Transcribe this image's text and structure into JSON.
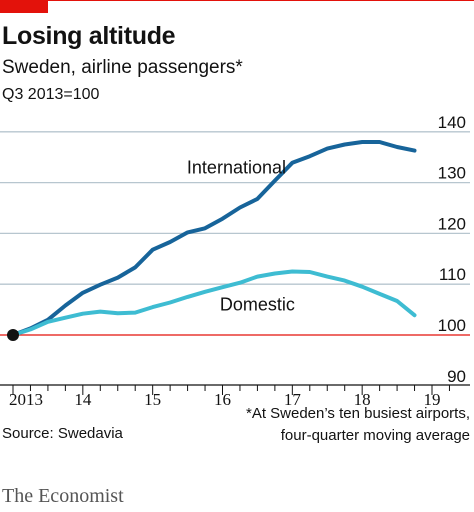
{
  "header": {
    "title": "Losing altitude",
    "subtitle": "Sweden, airline passengers*",
    "unit": "Q3 2013=100"
  },
  "footer": {
    "source": "Source: Swedavia",
    "footnote_line1": "*At Sweden’s ten busiest airports,",
    "footnote_line2": "four-quarter moving average",
    "brand": "The Economist"
  },
  "colors": {
    "accent": "#e3120b",
    "international": "#17649a",
    "domestic": "#3ebcd2",
    "grid": "#b7c6cf",
    "baseline": "#e3120b"
  },
  "chart_data": {
    "type": "line",
    "xlim": [
      2013.5,
      2019.95
    ],
    "ylim": [
      90,
      140
    ],
    "baseline": 100,
    "x_ticks": [
      {
        "label": "2013",
        "value": 2013.5
      },
      {
        "label": "14",
        "value": 2014.5
      },
      {
        "label": "15",
        "value": 2015.5
      },
      {
        "label": "16",
        "value": 2016.5
      },
      {
        "label": "17",
        "value": 2017.5
      },
      {
        "label": "18",
        "value": 2018.5
      },
      {
        "label": "19",
        "value": 2019.5
      }
    ],
    "y_ticks": [
      {
        "label": "90",
        "value": 90
      },
      {
        "label": "100",
        "value": 100
      },
      {
        "label": "110",
        "value": 110
      },
      {
        "label": "120",
        "value": 120
      },
      {
        "label": "130",
        "value": 130
      },
      {
        "label": "140",
        "value": 140
      }
    ],
    "series": [
      {
        "name": "International",
        "label_at": [
          2016.7,
          131.8
        ],
        "points": [
          [
            2013.5,
            100
          ],
          [
            2013.75,
            101.3
          ],
          [
            2014.0,
            103.0
          ],
          [
            2014.25,
            105.8
          ],
          [
            2014.5,
            108.3
          ],
          [
            2014.75,
            109.9
          ],
          [
            2015.0,
            111.3
          ],
          [
            2015.25,
            113.3
          ],
          [
            2015.5,
            116.8
          ],
          [
            2015.75,
            118.3
          ],
          [
            2016.0,
            120.2
          ],
          [
            2016.25,
            121.0
          ],
          [
            2016.5,
            122.9
          ],
          [
            2016.75,
            125.1
          ],
          [
            2017.0,
            126.8
          ],
          [
            2017.25,
            130.4
          ],
          [
            2017.5,
            133.9
          ],
          [
            2017.75,
            135.2
          ],
          [
            2018.0,
            136.7
          ],
          [
            2018.25,
            137.5
          ],
          [
            2018.5,
            138.0
          ],
          [
            2018.75,
            138.0
          ],
          [
            2019.0,
            137.0
          ],
          [
            2019.25,
            136.3
          ]
        ]
      },
      {
        "name": "Domestic",
        "label_at": [
          2017.0,
          104.8
        ],
        "points": [
          [
            2013.5,
            100
          ],
          [
            2013.75,
            101.1
          ],
          [
            2014.0,
            102.6
          ],
          [
            2014.25,
            103.4
          ],
          [
            2014.5,
            104.2
          ],
          [
            2014.75,
            104.6
          ],
          [
            2015.0,
            104.3
          ],
          [
            2015.25,
            104.4
          ],
          [
            2015.5,
            105.5
          ],
          [
            2015.75,
            106.4
          ],
          [
            2016.0,
            107.5
          ],
          [
            2016.25,
            108.5
          ],
          [
            2016.5,
            109.4
          ],
          [
            2016.75,
            110.3
          ],
          [
            2017.0,
            111.5
          ],
          [
            2017.25,
            112.1
          ],
          [
            2017.5,
            112.5
          ],
          [
            2017.75,
            112.4
          ],
          [
            2018.0,
            111.5
          ],
          [
            2018.25,
            110.7
          ],
          [
            2018.5,
            109.5
          ],
          [
            2018.75,
            108.1
          ],
          [
            2019.0,
            106.7
          ],
          [
            2019.25,
            103.9
          ]
        ]
      }
    ],
    "start_marker": {
      "x": 2013.5,
      "y": 100
    }
  }
}
